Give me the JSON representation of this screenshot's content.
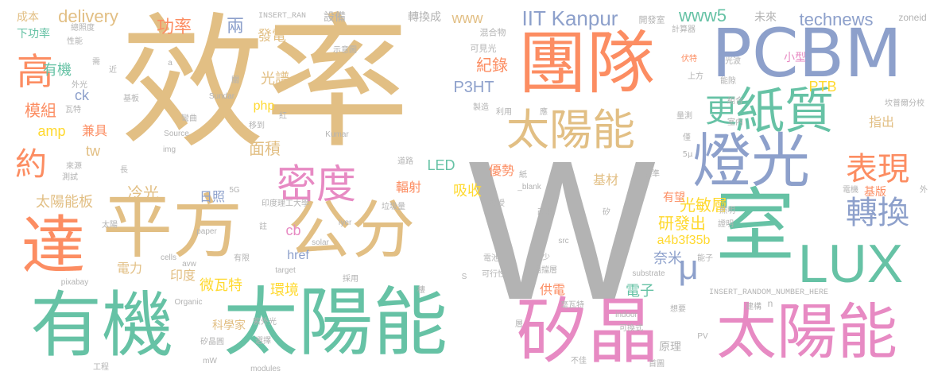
{
  "colors": {
    "tan": "#e2bf84",
    "green": "#66c2a5",
    "blue": "#8da0cb",
    "orange": "#fc8d62",
    "pink": "#e78ac3",
    "lime": "#a6d854",
    "yellow": "#ffd92f",
    "gray": "#b3b3b3"
  },
  "words": [
    "效率",
    "W",
    "團隊",
    "有機",
    "太陽能",
    "PCBM",
    "室",
    "平方",
    "公分",
    "矽晶",
    "太陽能",
    "燈光",
    "紙質",
    "達",
    "LUX",
    "太陽能",
    "密度",
    "表現",
    "轉換",
    "高",
    "更",
    "約",
    "IIT Kanpur",
    "www5",
    "technews",
    "delivery",
    "μ",
    "功率",
    "發電",
    "兩",
    "紀錄",
    "P3HT",
    "光譜",
    "有機",
    "模組",
    "小型",
    "PTB",
    "吸收",
    "LED",
    "amp",
    "php",
    "面積",
    "tw",
    "兼具",
    "冷光",
    "太陽能板",
    "日照",
    "研發出",
    "光敏層",
    "a4b3f35b",
    "奈米",
    "cb",
    "href",
    "電力",
    "印度",
    "微瓦特",
    "環境",
    "電子",
    "科學家",
    "供電",
    "優勢",
    "輻射",
    "基材",
    "有望",
    "基版",
    "指出",
    "www",
    "成本",
    "下功率",
    "轉換成",
    "設備",
    "INSERT_RAN",
    "未來",
    "zoneid",
    "開發室",
    "計算器",
    "混合物",
    "可見光",
    "示意圖",
    "性能",
    "總照度",
    "伏特",
    "光波",
    "上方",
    "能隙",
    "組合",
    "室內",
    "坎普爾分校",
    "量測",
    "5μ",
    "僅",
    "標準",
    "電機",
    "證明",
    "照明",
    "能子",
    "矽",
    "改用",
    "教授",
    "_blank",
    "紙",
    "應",
    "利用",
    "製造",
    "道路",
    "垃圾量",
    "Iyer",
    "src",
    "少",
    "阻擋層",
    "可行性",
    "電池",
    "S",
    "substrate",
    "毫瓦特",
    "INSERT_RANDOM_NUMBER_HERE",
    "indoor",
    "建構",
    "想要",
    "層",
    "可換式",
    "原理",
    "PV",
    "首圖",
    "不佳",
    "modules",
    "mW",
    "矽晶圓",
    "選擇",
    "紫外光",
    "採用",
    "樓",
    "solar",
    "target",
    "有限",
    "cells",
    "avw",
    "註",
    "印度理工大學",
    "paper",
    "5G",
    "Organic",
    "pixabay",
    "Source",
    "img",
    "Kumar",
    "紅",
    "移到",
    "彎曲",
    "Sundar",
    "a",
    "近",
    "需",
    "外光",
    "瓦特",
    "基板",
    "測試",
    "來源",
    "長",
    "太陽",
    "工程",
    "n",
    "ck",
    "關",
    "外",
    "INSERT_RAN"
  ]
}
